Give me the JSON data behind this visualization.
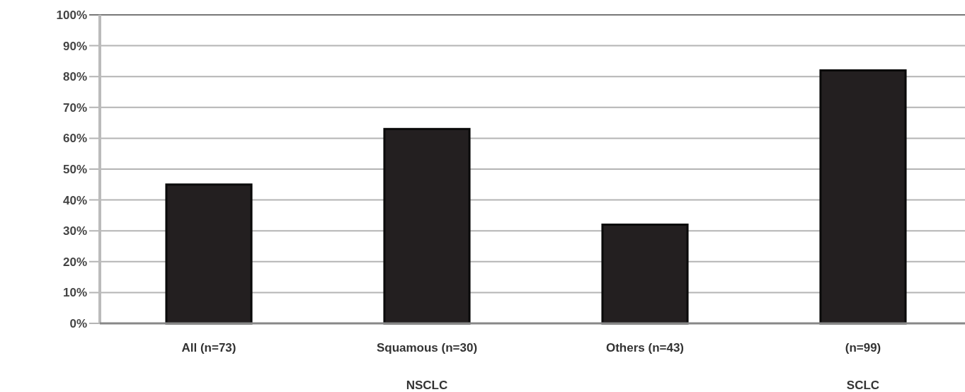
{
  "chart_data": {
    "type": "bar",
    "categories": [
      "All (n=73)",
      "Squamous (n=30)",
      "Others (n=43)",
      "(n=99)"
    ],
    "values": [
      45,
      63,
      32,
      82
    ],
    "color": "#231f20",
    "ylim": [
      0,
      100
    ],
    "yticks": [
      {
        "value": 0,
        "label": "0%"
      },
      {
        "value": 10,
        "label": "10%"
      },
      {
        "value": 20,
        "label": "20%"
      },
      {
        "value": 30,
        "label": "30%"
      },
      {
        "value": 40,
        "label": "40%"
      },
      {
        "value": 50,
        "label": "50%"
      },
      {
        "value": 60,
        "label": "60%"
      },
      {
        "value": 70,
        "label": "70%"
      },
      {
        "value": 80,
        "label": "80%"
      },
      {
        "value": 90,
        "label": "90%"
      },
      {
        "value": 100,
        "label": "100%"
      }
    ],
    "grid": "y",
    "annotations": [
      "NSCLC",
      "SCLC"
    ]
  }
}
